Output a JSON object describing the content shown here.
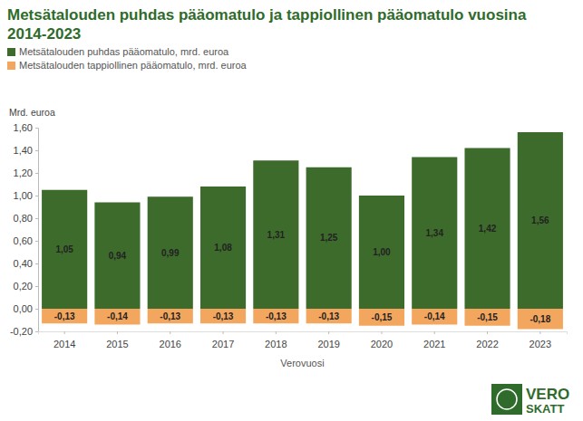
{
  "chart_data": {
    "type": "bar",
    "title": "Metsätalouden puhdas pääomatulo ja tappiollinen pääomatulo vuosina 2014-2023",
    "legend": "top-left",
    "y_label": "Mrd. euroa",
    "x_label": "Verovuosi",
    "categories": [
      "2014",
      "2015",
      "2016",
      "2017",
      "2018",
      "2019",
      "2020",
      "2021",
      "2022",
      "2023"
    ],
    "series": [
      {
        "name": "Metsätalouden puhdas pääomatulo, mrd. euroa",
        "color": "#3d6b2b",
        "values": [
          1.05,
          0.94,
          0.99,
          1.08,
          1.31,
          1.25,
          1.0,
          1.34,
          1.42,
          1.56
        ],
        "value_labels": [
          "1,05",
          "0,94",
          "0,99",
          "1,08",
          "1,31",
          "1,25",
          "1,00",
          "1,34",
          "1,42",
          "1,56"
        ]
      },
      {
        "name": "Metsätalouden tappiollinen pääomatulo, mrd. euroa",
        "color": "#f3a65e",
        "values": [
          -0.13,
          -0.14,
          -0.13,
          -0.13,
          -0.13,
          -0.13,
          -0.15,
          -0.14,
          -0.15,
          -0.18
        ],
        "value_labels": [
          "-0,13",
          "-0,14",
          "-0,13",
          "-0,13",
          "-0,13",
          "-0,13",
          "-0,15",
          "-0,14",
          "-0,15",
          "-0,18"
        ]
      }
    ],
    "ylim": [
      -0.2,
      1.6
    ],
    "yticks": [
      {
        "value": -0.2,
        "label": "-0,20"
      },
      {
        "value": 0,
        "label": "0,00"
      },
      {
        "value": 0.2,
        "label": "0,20"
      },
      {
        "value": 0.4,
        "label": "0,40"
      },
      {
        "value": 0.6,
        "label": "0,60"
      },
      {
        "value": 0.8,
        "label": "0,80"
      },
      {
        "value": 1.0,
        "label": "1,00"
      },
      {
        "value": 1.2,
        "label": "1,20"
      },
      {
        "value": 1.4,
        "label": "1,40"
      },
      {
        "value": 1.6,
        "label": "1,60"
      }
    ],
    "grid": false,
    "stacked": true,
    "data_labels": true,
    "annotations": [
      "VERO",
      "SKATT"
    ]
  }
}
